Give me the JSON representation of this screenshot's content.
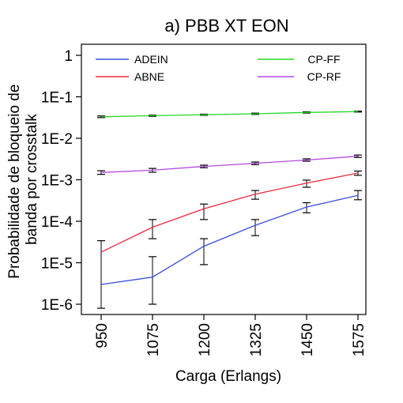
{
  "chart_data": {
    "type": "line",
    "title": "a) PBB XT EON",
    "xlabel": "Carga (Erlangs)",
    "ylabel_lines": [
      "Probabilidade de bloqueio de",
      "banda por crosstalk"
    ],
    "x": [
      950,
      1075,
      1200,
      1325,
      1450,
      1575
    ],
    "x_tick_labels": [
      "950",
      "1075",
      "1200",
      "1325",
      "1450",
      "1575"
    ],
    "y_scale": "log",
    "ylim": [
      1e-06,
      1
    ],
    "y_ticks": [
      1,
      0.1,
      0.01,
      0.001,
      0.0001,
      1e-05,
      1e-06
    ],
    "y_tick_labels": [
      "1",
      "1E-1",
      "1E-2",
      "1E-3",
      "1E-4",
      "1E-5",
      "1E-6"
    ],
    "legend": "top, two columns",
    "series": [
      {
        "name": "ADEIN",
        "color": "#3a4fd8",
        "values": [
          3e-06,
          4.5e-06,
          2.5e-05,
          8e-05,
          0.00022,
          0.00042
        ],
        "error_low": [
          8e-07,
          1e-06,
          9e-06,
          4.5e-05,
          0.00016,
          0.00033
        ],
        "error_high": [
          3.4e-05,
          1.4e-05,
          3.8e-05,
          0.00011,
          0.00028,
          0.00055
        ]
      },
      {
        "name": "ABNE",
        "color": "#e8283c",
        "values": [
          1.8e-05,
          7.2e-05,
          0.0002,
          0.00045,
          0.00083,
          0.00145
        ],
        "error_low": [
          1.8e-05,
          3.8e-05,
          0.00011,
          0.00034,
          0.00066,
          0.00128
        ],
        "error_high": [
          1.8e-05,
          0.00011,
          0.00026,
          0.00055,
          0.00098,
          0.00162
        ]
      },
      {
        "name": "CP-FF",
        "color": "#27d827",
        "values": [
          0.033,
          0.035,
          0.037,
          0.039,
          0.042,
          0.044
        ],
        "error_low": [
          0.0315,
          0.0338,
          0.0358,
          0.0376,
          0.0405,
          0.0428
        ],
        "error_high": [
          0.0345,
          0.0362,
          0.0382,
          0.0404,
          0.0435,
          0.0452
        ]
      },
      {
        "name": "CP-RF",
        "color": "#b649e0",
        "values": [
          0.0015,
          0.0017,
          0.0021,
          0.0025,
          0.003,
          0.0037
        ],
        "error_low": [
          0.00135,
          0.00152,
          0.00195,
          0.00232,
          0.0028,
          0.00345
        ],
        "error_high": [
          0.00165,
          0.00188,
          0.00225,
          0.00268,
          0.0032,
          0.00395
        ]
      }
    ]
  }
}
